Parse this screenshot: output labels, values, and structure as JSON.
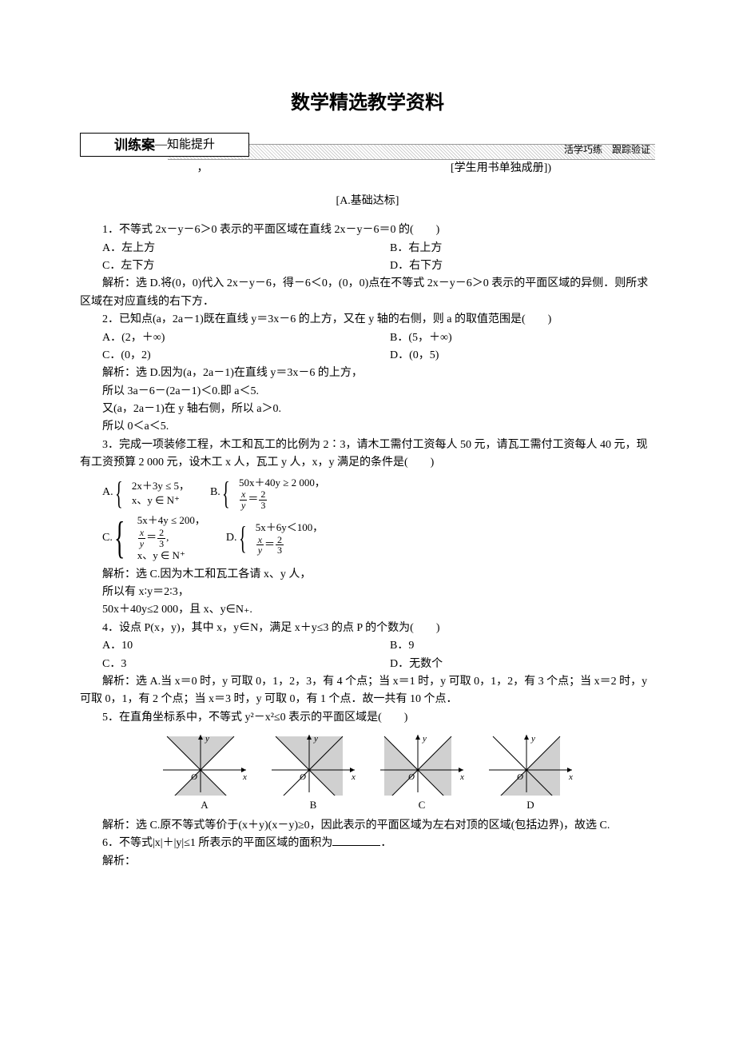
{
  "mainTitle": "数学精选教学资料",
  "banner": {
    "left1": "训练案",
    "left2": "—知能提升",
    "right": "活学巧练　跟踪验证"
  },
  "subnote": {
    "left": "，",
    "right": "[学生用书单独成册])"
  },
  "sectionLabel": "[A.基础达标]",
  "q1": {
    "stem": "1．不等式 2x－y－6＞0 表示的平面区域在直线 2x－y－6＝0 的(　　)",
    "A": "A．左上方",
    "B": "B．右上方",
    "C": "C．左下方",
    "D": "D．右下方",
    "exp": "解析：选 D.将(0，0)代入 2x－y－6，得－6＜0，(0，0)点在不等式 2x－y－6＞0 表示的平面区域的异侧．则所求区域在对应直线的右下方．"
  },
  "q2": {
    "stem": "2．已知点(a，2a－1)既在直线 y＝3x－6 的上方，又在 y 轴的右侧，则 a 的取值范围是(　　)",
    "A": "A．(2，＋∞)",
    "B": "B．(5，＋∞)",
    "C": "C．(0，2)",
    "D": "D．(0，5)",
    "exp1": "解析：选 D.因为(a，2a－1)在直线 y＝3x－6 的上方，",
    "exp2": "所以 3a－6－(2a－1)＜0.即 a＜5.",
    "exp3": "又(a，2a－1)在 y 轴右侧，所以 a＞0.",
    "exp4": "所以 0＜a＜5."
  },
  "q3": {
    "stem": "3．完成一项装修工程，木工和瓦工的比例为 2∶3，请木工需付工资每人 50 元，请瓦工需付工资每人 40 元，现有工资预算 2 000 元，设木工 x 人，瓦工 y 人，x，y 满足的条件是(　　)",
    "opts": {
      "A": {
        "label": "A.",
        "lines": [
          "2x＋3y ≤ 5，",
          "x、y ∈ N⁺"
        ]
      },
      "B": {
        "label": "B.",
        "lines": [
          "50x＋40y ≥ 2 000，",
          "FRAC_xy_23"
        ]
      },
      "C": {
        "label": "C.",
        "lines": [
          "5x＋4y ≤ 200，",
          "FRAC_xy_23,",
          "x、y ∈ N⁺"
        ]
      },
      "D": {
        "label": "D.",
        "lines": [
          "5x＋6y＜100，",
          "FRAC_xy_23"
        ]
      }
    },
    "exp1": "解析：选 C.因为木工和瓦工各请 x、y 人，",
    "exp2": "所以有 x∶y＝2∶3，",
    "exp3": "50x＋40y≤2 000，且 x、y∈N₊."
  },
  "q4": {
    "stem": "4．设点 P(x，y)，其中 x，y∈N，满足 x＋y≤3 的点 P 的个数为(　　)",
    "A": "A．10",
    "B": "B．9",
    "C": "C．3",
    "D": "D．无数个",
    "exp": "解析：选 A.当 x＝0 时，y 可取 0，1，2，3，有 4 个点；当 x＝1 时，y 可取 0，1，2，有 3 个点；当 x＝2 时，y 可取 0，1，有 2 个点；当 x＝3 时，y 可取 0，有 1 个点．故一共有 10 个点．"
  },
  "q5": {
    "stem": "5．在直角坐标系中，不等式 y²－x²≤0 表示的平面区域是(　　)",
    "labels": {
      "A": "A",
      "B": "B",
      "C": "C",
      "D": "D"
    },
    "exp": "解析：选 C.原不等式等价于(x＋y)(x－y)≥0，因此表示的平面区域为左右对顶的区域(包括边界)，故选 C."
  },
  "q6": {
    "stem1": "6．不等式|x|＋|y|≤1 所表示的平面区域的面积为",
    "stem2": "．",
    "exp": "解析："
  },
  "diagram": {
    "axis_color": "#000000",
    "fill_color": "#d0d0d0",
    "label_y": "y",
    "label_x": "x",
    "label_O": "O"
  }
}
